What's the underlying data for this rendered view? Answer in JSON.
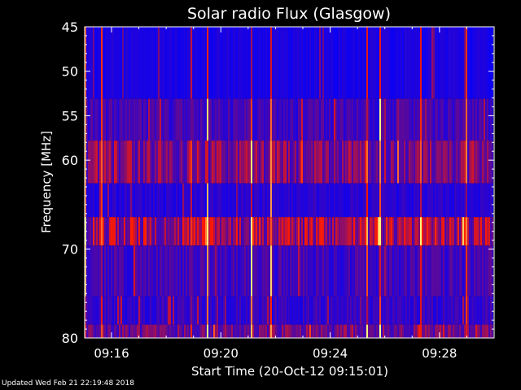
{
  "chart_data": {
    "type": "heatmap",
    "title": "Solar radio Flux (Glasgow)",
    "xlabel": "Start Time (20-Oct-12 09:15:01)",
    "ylabel": "Frequency [MHz]",
    "xlim": [
      "09:15:01",
      "09:30:00"
    ],
    "ylim": [
      45,
      80
    ],
    "x_ticks": [
      "09:16",
      "09:20",
      "09:24",
      "09:28"
    ],
    "y_ticks": [
      45,
      50,
      55,
      60,
      70,
      80
    ],
    "colormap": [
      "#0000ff",
      "#6a0a8a",
      "#ff1a00",
      "#ffff80"
    ],
    "bands": [
      {
        "from_mhz": 45.0,
        "to_mhz": 53.1,
        "level": 0.1
      },
      {
        "from_mhz": 53.1,
        "to_mhz": 57.8,
        "level": 0.25
      },
      {
        "from_mhz": 57.8,
        "to_mhz": 62.6,
        "level": 0.45
      },
      {
        "from_mhz": 62.6,
        "to_mhz": 66.4,
        "level": 0.15
      },
      {
        "from_mhz": 66.4,
        "to_mhz": 69.6,
        "level": 0.55
      },
      {
        "from_mhz": 69.6,
        "to_mhz": 75.3,
        "level": 0.25
      },
      {
        "from_mhz": 75.3,
        "to_mhz": 78.5,
        "level": 0.2
      },
      {
        "from_mhz": 78.5,
        "to_mhz": 80.0,
        "level": 0.4
      }
    ]
  },
  "footer": "Updated Wed Feb 21 22:19:48 2018",
  "colors": {
    "background": "#000000",
    "axis": "#ffffff"
  }
}
